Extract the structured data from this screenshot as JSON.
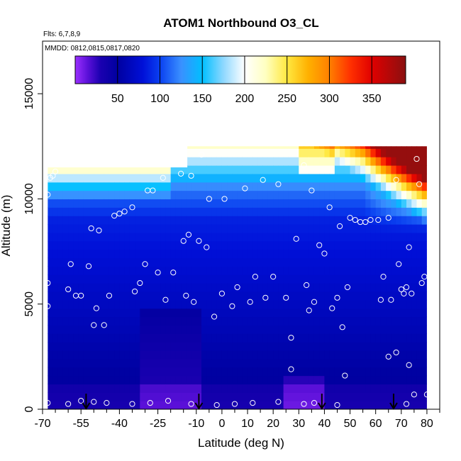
{
  "chart_data": {
    "type": "heatmap",
    "title": "ATOM1 Northbound O3_CL",
    "subtitle_flights": "Flts: 6,7,8,9",
    "subtitle_dates": "MMDD: 0812,0815,0817,0820",
    "xlabel": "Latitude (deg N)",
    "ylabel": "Altitude (m)",
    "xlim": [
      -70,
      85
    ],
    "ylim": [
      0,
      17500
    ],
    "x_ticks": [
      -70,
      -55,
      -40,
      -25,
      -10,
      0,
      10,
      20,
      30,
      40,
      50,
      60,
      70,
      80
    ],
    "x_tick_labels": [
      "-70",
      "-55",
      "-40",
      "-25",
      "-10",
      "0",
      "10",
      "20",
      "30",
      "40",
      "50",
      "60",
      "70",
      "80"
    ],
    "x_minor_ticks": [
      -65,
      -60,
      -50,
      -45,
      -35,
      -30,
      -20,
      -15,
      -5,
      5,
      15,
      25,
      35,
      45,
      55,
      65,
      75,
      85
    ],
    "y_ticks": [
      0,
      5000,
      10000,
      15000
    ],
    "y_tick_labels": [
      "0",
      "5000",
      "10000",
      "15000"
    ],
    "colorbar": {
      "range": [
        0,
        390
      ],
      "ticks": [
        50,
        100,
        150,
        200,
        250,
        300,
        350
      ],
      "tick_labels": [
        "50",
        "100",
        "150",
        "200",
        "250",
        "300",
        "350"
      ],
      "stops": [
        {
          "v": 0,
          "c": "#9b30ff"
        },
        {
          "v": 15,
          "c": "#5a10d8"
        },
        {
          "v": 30,
          "c": "#1a00b0"
        },
        {
          "v": 50,
          "c": "#0000a0"
        },
        {
          "v": 80,
          "c": "#0010d8"
        },
        {
          "v": 100,
          "c": "#0a40f0"
        },
        {
          "v": 125,
          "c": "#3a90ff"
        },
        {
          "v": 150,
          "c": "#00bfff"
        },
        {
          "v": 175,
          "c": "#8fd8ff"
        },
        {
          "v": 200,
          "c": "#ffffff"
        },
        {
          "v": 225,
          "c": "#ffffc0"
        },
        {
          "v": 250,
          "c": "#ffe840"
        },
        {
          "v": 275,
          "c": "#ffb000"
        },
        {
          "v": 300,
          "c": "#ff8000"
        },
        {
          "v": 325,
          "c": "#ff3000"
        },
        {
          "v": 350,
          "c": "#e00000"
        },
        {
          "v": 390,
          "c": "#8a1010"
        }
      ]
    },
    "field": {
      "lat_min": -68,
      "lat_max": 80,
      "alt_max": 12500,
      "top_segments": [
        {
          "lat": -68,
          "alt": 11500
        },
        {
          "lat": -13.5,
          "alt": 11500
        },
        {
          "lat": -13.5,
          "alt": 12500
        },
        {
          "lat": 80,
          "alt": 12500
        }
      ]
    },
    "dive_latitudes": [
      -53,
      -9,
      39,
      67
    ],
    "points": [
      {
        "lat": -68,
        "alt": 300
      },
      {
        "lat": -60,
        "alt": 250
      },
      {
        "lat": -55,
        "alt": 400
      },
      {
        "lat": -50,
        "alt": 350
      },
      {
        "lat": -45,
        "alt": 300
      },
      {
        "lat": -35,
        "alt": 250
      },
      {
        "lat": -28,
        "alt": 300
      },
      {
        "lat": -21,
        "alt": 400
      },
      {
        "lat": -12,
        "alt": 250
      },
      {
        "lat": -2,
        "alt": 200
      },
      {
        "lat": 5,
        "alt": 250
      },
      {
        "lat": 12,
        "alt": 300
      },
      {
        "lat": 22,
        "alt": 350
      },
      {
        "lat": 32,
        "alt": 250
      },
      {
        "lat": 36,
        "alt": 300
      },
      {
        "lat": 45,
        "alt": 200
      },
      {
        "lat": 72,
        "alt": 250
      },
      {
        "lat": 75,
        "alt": 700
      },
      {
        "lat": 80,
        "alt": 700
      },
      {
        "lat": -68,
        "alt": 4900
      },
      {
        "lat": -68,
        "alt": 6000
      },
      {
        "lat": -68,
        "alt": 10200
      },
      {
        "lat": -67,
        "alt": 11000
      },
      {
        "lat": -66,
        "alt": 11100
      },
      {
        "lat": -65,
        "alt": 11300
      },
      {
        "lat": -60,
        "alt": 5700
      },
      {
        "lat": -59,
        "alt": 6900
      },
      {
        "lat": -57,
        "alt": 5400
      },
      {
        "lat": -55,
        "alt": 5400
      },
      {
        "lat": -52,
        "alt": 6800
      },
      {
        "lat": -51,
        "alt": 8600
      },
      {
        "lat": -50,
        "alt": 4000
      },
      {
        "lat": -49,
        "alt": 4800
      },
      {
        "lat": -48,
        "alt": 8500
      },
      {
        "lat": -46,
        "alt": 4000
      },
      {
        "lat": -44,
        "alt": 5400
      },
      {
        "lat": -42,
        "alt": 9200
      },
      {
        "lat": -40,
        "alt": 9300
      },
      {
        "lat": -38,
        "alt": 9400
      },
      {
        "lat": -35,
        "alt": 9600
      },
      {
        "lat": -34,
        "alt": 5600
      },
      {
        "lat": -32,
        "alt": 6000
      },
      {
        "lat": -30,
        "alt": 6900
      },
      {
        "lat": -29,
        "alt": 10400
      },
      {
        "lat": -27,
        "alt": 10400
      },
      {
        "lat": -25,
        "alt": 6500
      },
      {
        "lat": -23,
        "alt": 11000
      },
      {
        "lat": -22,
        "alt": 5200
      },
      {
        "lat": -19,
        "alt": 6500
      },
      {
        "lat": -16,
        "alt": 11200
      },
      {
        "lat": -15,
        "alt": 8000
      },
      {
        "lat": -14,
        "alt": 5400
      },
      {
        "lat": -13,
        "alt": 8300
      },
      {
        "lat": -12,
        "alt": 11100
      },
      {
        "lat": -11,
        "alt": 5100
      },
      {
        "lat": -9,
        "alt": 8000
      },
      {
        "lat": -8,
        "alt": 12100
      },
      {
        "lat": -6,
        "alt": 7700
      },
      {
        "lat": -5,
        "alt": 10000
      },
      {
        "lat": -3,
        "alt": 4400
      },
      {
        "lat": 0,
        "alt": 5500
      },
      {
        "lat": 1,
        "alt": 10000
      },
      {
        "lat": 4,
        "alt": 4900
      },
      {
        "lat": 6,
        "alt": 5800
      },
      {
        "lat": 9,
        "alt": 10500
      },
      {
        "lat": 11,
        "alt": 5100
      },
      {
        "lat": 13,
        "alt": 6300
      },
      {
        "lat": 16,
        "alt": 10900
      },
      {
        "lat": 17,
        "alt": 5300
      },
      {
        "lat": 20,
        "alt": 6300
      },
      {
        "lat": 22,
        "alt": 10700
      },
      {
        "lat": 25,
        "alt": 5300
      },
      {
        "lat": 27,
        "alt": 1900
      },
      {
        "lat": 27,
        "alt": 3400
      },
      {
        "lat": 29,
        "alt": 8100
      },
      {
        "lat": 32,
        "alt": 11600
      },
      {
        "lat": 33,
        "alt": 5900
      },
      {
        "lat": 34,
        "alt": 4700
      },
      {
        "lat": 35,
        "alt": 10400
      },
      {
        "lat": 36,
        "alt": 5100
      },
      {
        "lat": 38,
        "alt": 7800
      },
      {
        "lat": 40,
        "alt": 7400
      },
      {
        "lat": 42,
        "alt": 9600
      },
      {
        "lat": 43,
        "alt": 4800
      },
      {
        "lat": 45,
        "alt": 5300
      },
      {
        "lat": 46,
        "alt": 8700
      },
      {
        "lat": 47,
        "alt": 3900
      },
      {
        "lat": 48,
        "alt": 1600
      },
      {
        "lat": 49,
        "alt": 5800
      },
      {
        "lat": 50,
        "alt": 9100
      },
      {
        "lat": 52,
        "alt": 9000
      },
      {
        "lat": 54,
        "alt": 8900
      },
      {
        "lat": 56,
        "alt": 8900
      },
      {
        "lat": 58,
        "alt": 9000
      },
      {
        "lat": 61,
        "alt": 9000
      },
      {
        "lat": 62,
        "alt": 5200
      },
      {
        "lat": 63,
        "alt": 6300
      },
      {
        "lat": 65,
        "alt": 9100
      },
      {
        "lat": 65,
        "alt": 2500
      },
      {
        "lat": 66,
        "alt": 5200
      },
      {
        "lat": 68,
        "alt": 10900
      },
      {
        "lat": 68,
        "alt": 2700
      },
      {
        "lat": 69,
        "alt": 6900
      },
      {
        "lat": 70,
        "alt": 5700
      },
      {
        "lat": 71,
        "alt": 5500
      },
      {
        "lat": 72,
        "alt": 5800
      },
      {
        "lat": 73,
        "alt": 7700
      },
      {
        "lat": 73,
        "alt": 2100
      },
      {
        "lat": 74,
        "alt": 5500
      },
      {
        "lat": 76,
        "alt": 11900
      },
      {
        "lat": 77,
        "alt": 10700
      },
      {
        "lat": 78,
        "alt": 6000
      },
      {
        "lat": 79,
        "alt": 6300
      }
    ]
  }
}
